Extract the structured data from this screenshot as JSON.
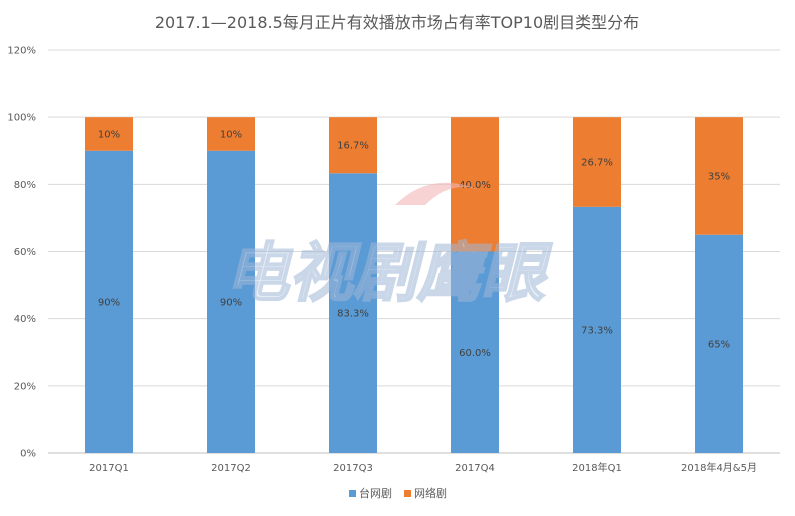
{
  "chart_data": {
    "type": "bar",
    "stacked": true,
    "title": "2017.1—2018.5每月正片有效播放市场占有率TOP10剧目类型分布",
    "categories": [
      "2017Q1",
      "2017Q2",
      "2017Q3",
      "2017Q4",
      "2018年Q1",
      "2018年4月&5月"
    ],
    "series": [
      {
        "name": "台网剧",
        "color": "#5b9bd5",
        "values": [
          90,
          90,
          83.3,
          60.0,
          73.3,
          65
        ],
        "labels": [
          "90%",
          "90%",
          "83.3%",
          "60.0%",
          "73.3%",
          "65%"
        ]
      },
      {
        "name": "网络剧",
        "color": "#ed7d31",
        "values": [
          10,
          10,
          16.7,
          40.0,
          26.7,
          35
        ],
        "labels": [
          "10%",
          "10%",
          "16.7%",
          "40.0%",
          "26.7%",
          "35%"
        ]
      }
    ],
    "ylim": [
      0,
      120
    ],
    "yticks": [
      "0%",
      "20%",
      "40%",
      "60%",
      "80%",
      "100%",
      "120%"
    ],
    "grid": true,
    "legend": "bottom",
    "xlabel": "",
    "ylabel": ""
  },
  "watermark": {
    "text": "电视剧鹰眼"
  }
}
